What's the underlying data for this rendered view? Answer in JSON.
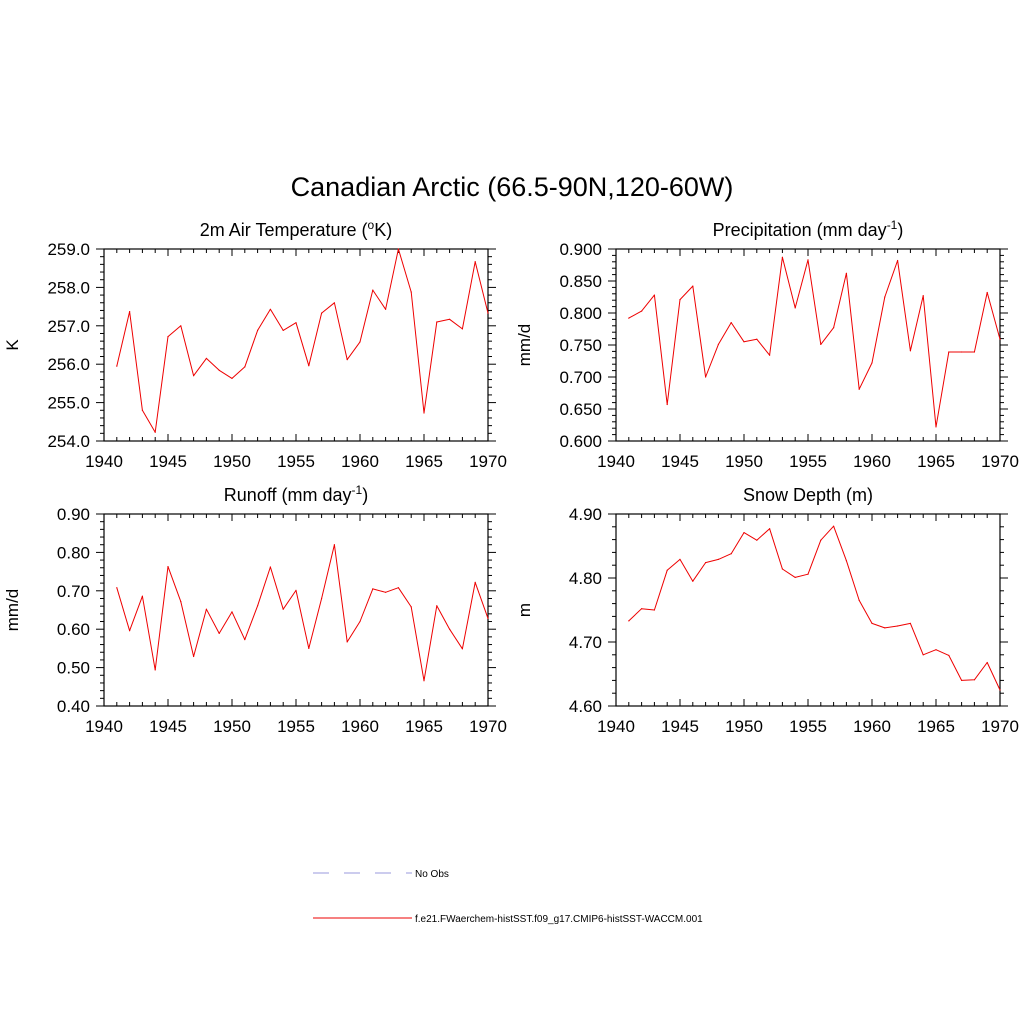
{
  "title": "Canadian Arctic (66.5-90N,120-60W)",
  "colors": {
    "model": "#ee0000",
    "obs": "#9999dd"
  },
  "legend": [
    {
      "label": "No Obs",
      "style": "dashed",
      "color": "#9999dd"
    },
    {
      "label": "f.e21.FWaerchem-histSST.f09_g17.CMIP6-histSST-WACCM.001",
      "style": "solid",
      "color": "#ee0000"
    }
  ],
  "chart_data": [
    {
      "type": "line",
      "title_main": "2m Air Temperature (",
      "title_sup": "o",
      "title_end": "K)",
      "ylabel": "K",
      "xlim": [
        1940,
        1970
      ],
      "ylim": [
        254.0,
        259.0
      ],
      "xticks": [
        1940,
        1945,
        1950,
        1955,
        1960,
        1965,
        1970
      ],
      "yticks": [
        "254.0",
        "255.0",
        "256.0",
        "257.0",
        "258.0",
        "259.0"
      ],
      "x": [
        1941,
        1942,
        1943,
        1944,
        1945,
        1946,
        1947,
        1948,
        1949,
        1950,
        1951,
        1952,
        1953,
        1954,
        1955,
        1956,
        1957,
        1958,
        1959,
        1960,
        1961,
        1962,
        1963,
        1964,
        1965,
        1966,
        1967,
        1968,
        1969,
        1970
      ],
      "series": [
        {
          "values": [
            255.95,
            257.37,
            254.8,
            254.23,
            256.72,
            257.0,
            255.7,
            256.15,
            255.84,
            255.63,
            255.93,
            256.88,
            257.43,
            256.88,
            257.08,
            255.96,
            257.33,
            257.6,
            256.12,
            256.58,
            257.93,
            257.43,
            259.0,
            257.88,
            254.73,
            257.1,
            257.17,
            256.92,
            258.67,
            257.33
          ]
        }
      ]
    },
    {
      "type": "line",
      "title_main": "Precipitation (mm day",
      "title_sup": "-1",
      "title_end": ")",
      "ylabel": "mm/d",
      "xlim": [
        1940,
        1970
      ],
      "ylim": [
        0.6,
        0.9
      ],
      "xticks": [
        1940,
        1945,
        1950,
        1955,
        1960,
        1965,
        1970
      ],
      "yticks": [
        "0.600",
        "0.650",
        "0.700",
        "0.750",
        "0.800",
        "0.850",
        "0.900"
      ],
      "x": [
        1941,
        1942,
        1943,
        1944,
        1945,
        1946,
        1947,
        1948,
        1949,
        1950,
        1951,
        1952,
        1953,
        1954,
        1955,
        1956,
        1957,
        1958,
        1959,
        1960,
        1961,
        1962,
        1963,
        1964,
        1965,
        1966,
        1967,
        1968,
        1969,
        1970
      ],
      "series": [
        {
          "values": [
            0.792,
            0.803,
            0.828,
            0.657,
            0.821,
            0.842,
            0.7,
            0.751,
            0.785,
            0.755,
            0.759,
            0.734,
            0.887,
            0.808,
            0.883,
            0.751,
            0.777,
            0.862,
            0.681,
            0.722,
            0.825,
            0.882,
            0.741,
            0.827,
            0.622,
            0.739,
            0.739,
            0.739,
            0.832,
            0.759
          ]
        }
      ]
    },
    {
      "type": "line",
      "title_main": "Runoff (mm day",
      "title_sup": "-1",
      "title_end": ")",
      "ylabel": "mm/d",
      "xlim": [
        1940,
        1970
      ],
      "ylim": [
        0.4,
        0.9
      ],
      "xticks": [
        1940,
        1945,
        1950,
        1955,
        1960,
        1965,
        1970
      ],
      "yticks": [
        "0.40",
        "0.50",
        "0.60",
        "0.70",
        "0.80",
        "0.90"
      ],
      "x": [
        1941,
        1942,
        1943,
        1944,
        1945,
        1946,
        1947,
        1948,
        1949,
        1950,
        1951,
        1952,
        1953,
        1954,
        1955,
        1956,
        1957,
        1958,
        1959,
        1960,
        1961,
        1962,
        1963,
        1964,
        1965,
        1966,
        1967,
        1968,
        1969,
        1970
      ],
      "series": [
        {
          "values": [
            0.708,
            0.596,
            0.686,
            0.494,
            0.763,
            0.672,
            0.529,
            0.652,
            0.589,
            0.645,
            0.573,
            0.661,
            0.762,
            0.652,
            0.701,
            0.55,
            0.68,
            0.82,
            0.567,
            0.62,
            0.705,
            0.696,
            0.708,
            0.658,
            0.466,
            0.661,
            0.6,
            0.549,
            0.722,
            0.628
          ]
        }
      ]
    },
    {
      "type": "line",
      "title_main": "Snow Depth (m)",
      "title_sup": "",
      "title_end": "",
      "ylabel": "m",
      "xlim": [
        1940,
        1970
      ],
      "ylim": [
        4.6,
        4.9
      ],
      "xticks": [
        1940,
        1945,
        1950,
        1955,
        1960,
        1965,
        1970
      ],
      "yticks": [
        "4.60",
        "4.70",
        "4.80",
        "4.90"
      ],
      "x": [
        1941,
        1942,
        1943,
        1944,
        1945,
        1946,
        1947,
        1948,
        1949,
        1950,
        1951,
        1952,
        1953,
        1954,
        1955,
        1956,
        1957,
        1958,
        1959,
        1960,
        1961,
        1962,
        1963,
        1964,
        1965,
        1966,
        1967,
        1968,
        1969,
        1970
      ],
      "series": [
        {
          "values": [
            4.733,
            4.752,
            4.75,
            4.812,
            4.829,
            4.795,
            4.824,
            4.829,
            4.838,
            4.871,
            4.859,
            4.877,
            4.814,
            4.801,
            4.806,
            4.859,
            4.881,
            4.827,
            4.765,
            4.729,
            4.722,
            4.725,
            4.729,
            4.68,
            4.688,
            4.679,
            4.64,
            4.641,
            4.668,
            4.625
          ]
        }
      ]
    }
  ]
}
